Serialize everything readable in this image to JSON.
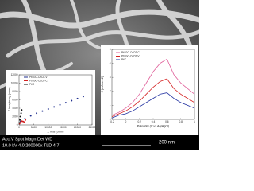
{
  "sem_info": {
    "header": "Acc.V  Spot Magn   Det  WD",
    "values": "10.0 kV 4.0   200000x TLD  4.7",
    "scale": "200 nm"
  },
  "chart_data": [
    {
      "type": "scatter",
      "xlabel": "Z real (ohm)",
      "ylabel": "-Z imaginary (ohm)",
      "xlim": [
        0,
        25000
      ],
      "xticks": [
        0,
        5000,
        10000,
        15000,
        20000,
        25000
      ],
      "ylim": [
        0,
        12000
      ],
      "yticks": [
        0,
        2000,
        4000,
        6000,
        8000,
        10000,
        12000
      ],
      "series": [
        {
          "name": "Pt/rGO-CeO2-V",
          "color": "#1f2f8f",
          "x": [
            500,
            2000,
            4000,
            6000,
            8000,
            10000,
            12000,
            14000,
            16000,
            18000,
            20000,
            22000
          ],
          "values": [
            800,
            1500,
            2200,
            2800,
            3300,
            3800,
            4300,
            4800,
            5300,
            5800,
            6300,
            6800
          ]
        },
        {
          "name": "Pt/rGO-CeO2-C",
          "color": "#d42020",
          "x": [
            200,
            600,
            1000,
            1400,
            1800,
            2200
          ],
          "values": [
            300,
            700,
            900,
            800,
            700,
            1200
          ]
        },
        {
          "name": "Pt/C",
          "color": "#111111",
          "x": [
            100,
            300,
            500,
            700,
            900
          ],
          "values": [
            500,
            1200,
            2000,
            2800,
            3600
          ]
        }
      ]
    },
    {
      "type": "line",
      "xlabel": "Potential (V vs Ag/AgCl)",
      "ylabel": "J (mA cm-2)",
      "xlim": [
        -0.2,
        1.0
      ],
      "xticks": [
        -0.2,
        0,
        0.2,
        0.4,
        0.6,
        0.8,
        1.0
      ],
      "ylim": [
        0,
        5
      ],
      "yticks": [
        0,
        1,
        2,
        3,
        4,
        5
      ],
      "x": [
        -0.2,
        -0.1,
        0,
        0.1,
        0.2,
        0.3,
        0.4,
        0.5,
        0.6,
        0.7,
        0.8,
        0.9,
        1.0
      ],
      "series": [
        {
          "name": "Pt/rGO-CeO2-C",
          "color": "#e0609a",
          "values": [
            0.3,
            0.5,
            0.8,
            1.2,
            1.8,
            2.6,
            3.4,
            4.0,
            4.3,
            3.2,
            2.6,
            2.2,
            1.8
          ]
        },
        {
          "name": "Pt/rGO-CeO2-V",
          "color": "#d42020",
          "values": [
            0.2,
            0.4,
            0.6,
            0.9,
            1.3,
            1.8,
            2.3,
            2.7,
            2.9,
            2.2,
            1.8,
            1.5,
            1.2
          ]
        },
        {
          "name": "Pt/C",
          "color": "#2030a0",
          "values": [
            0.1,
            0.3,
            0.4,
            0.6,
            0.9,
            1.2,
            1.5,
            1.8,
            1.9,
            1.5,
            1.2,
            1.0,
            0.8
          ]
        }
      ]
    }
  ]
}
